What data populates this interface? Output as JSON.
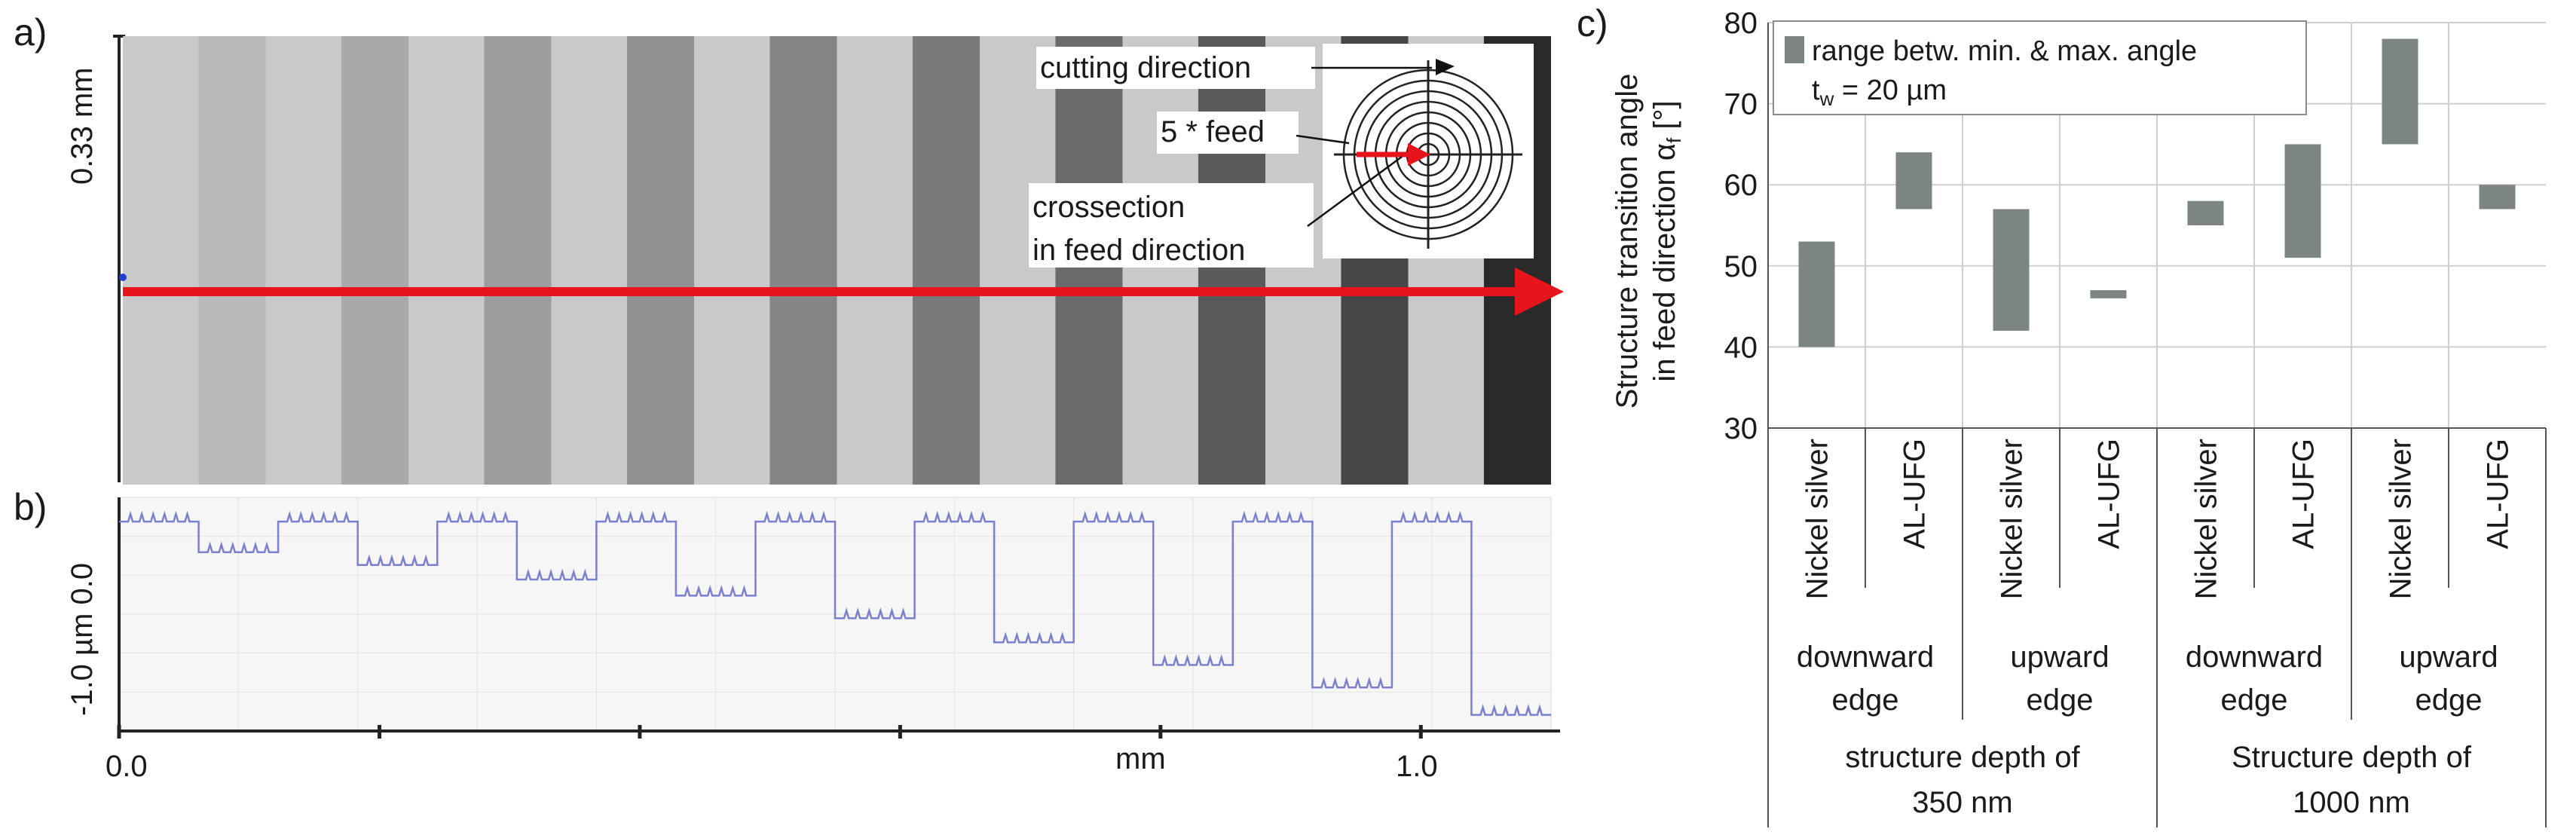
{
  "panel_labels": {
    "a": "a)",
    "b": "b)",
    "c": "c)"
  },
  "panel_a": {
    "y_scale_label": "0.33 mm",
    "inset": {
      "cutting_direction": "cutting direction",
      "feed": "5 * feed",
      "crossection_line1": "crossection",
      "crossection_line2": "in feed direction"
    },
    "stripes": [
      {
        "gray": "#b9b9b9"
      },
      {
        "gray": "#a9a9a9"
      },
      {
        "gray": "#9d9d9d"
      },
      {
        "gray": "#909090"
      },
      {
        "gray": "#858585"
      },
      {
        "gray": "#7a7a7a"
      },
      {
        "gray": "#6b6b6b"
      },
      {
        "gray": "#5a5a5a"
      },
      {
        "gray": "#474747"
      },
      {
        "gray": "#2a2a2a"
      }
    ],
    "colors": {
      "arrow": "#e8141b",
      "background_light": "#c9c9c9"
    }
  },
  "panel_b": {
    "y_label": "-1.0 µm 0.0",
    "x_unit": "mm",
    "x_ticks": [
      "0.0",
      "1.0"
    ],
    "x_range": [
      0.0,
      1.1
    ],
    "y_range": [
      -1.3,
      0.15
    ],
    "profile_levels": [
      0.0,
      -0.19,
      0.0,
      -0.27,
      0.0,
      -0.36,
      0.0,
      -0.46,
      0.0,
      -0.6,
      0.0,
      -0.75,
      0.0,
      -0.89,
      0.0,
      -1.03,
      0.0,
      -1.2
    ],
    "line_color": "#7b7fcf"
  },
  "chart_data": {
    "type": "floating-bar",
    "legend_line1": "range betw.  min. & max. angle",
    "legend_line2": "t",
    "legend_line2_sub": "w",
    "legend_line2_rest": " = 20 µm",
    "ylabel_line1": "Structure transition angle",
    "ylabel_line2": "in feed direction α",
    "ylabel_line2_sub": "f",
    "ylabel_line2_rest": " [°]",
    "ylim": [
      30,
      80
    ],
    "yticks": [
      "30",
      "40",
      "50",
      "60",
      "70",
      "80"
    ],
    "bar_color": "#7d8583",
    "categories": [
      "Nickel silver",
      "AL-UFG",
      "Nickel silver",
      "AL-UFG",
      "Nickel silver",
      "AL-UFG",
      "Nickel silver",
      "AL-UFG"
    ],
    "ranges": [
      [
        40,
        53
      ],
      [
        57,
        64
      ],
      [
        42,
        57
      ],
      [
        46,
        47
      ],
      [
        55,
        58
      ],
      [
        51,
        65
      ],
      [
        65,
        78
      ],
      [
        57,
        60
      ]
    ],
    "edge_groups": [
      {
        "line1": "downward",
        "line2": "edge"
      },
      {
        "line1": "upward",
        "line2": "edge"
      },
      {
        "line1": "downward",
        "line2": "edge"
      },
      {
        "line1": "upward",
        "line2": "edge"
      }
    ],
    "depth_groups": [
      {
        "line1": "structure depth of",
        "line2": "350 nm"
      },
      {
        "line1": "Structure depth of",
        "line2": "1000 nm"
      }
    ]
  }
}
